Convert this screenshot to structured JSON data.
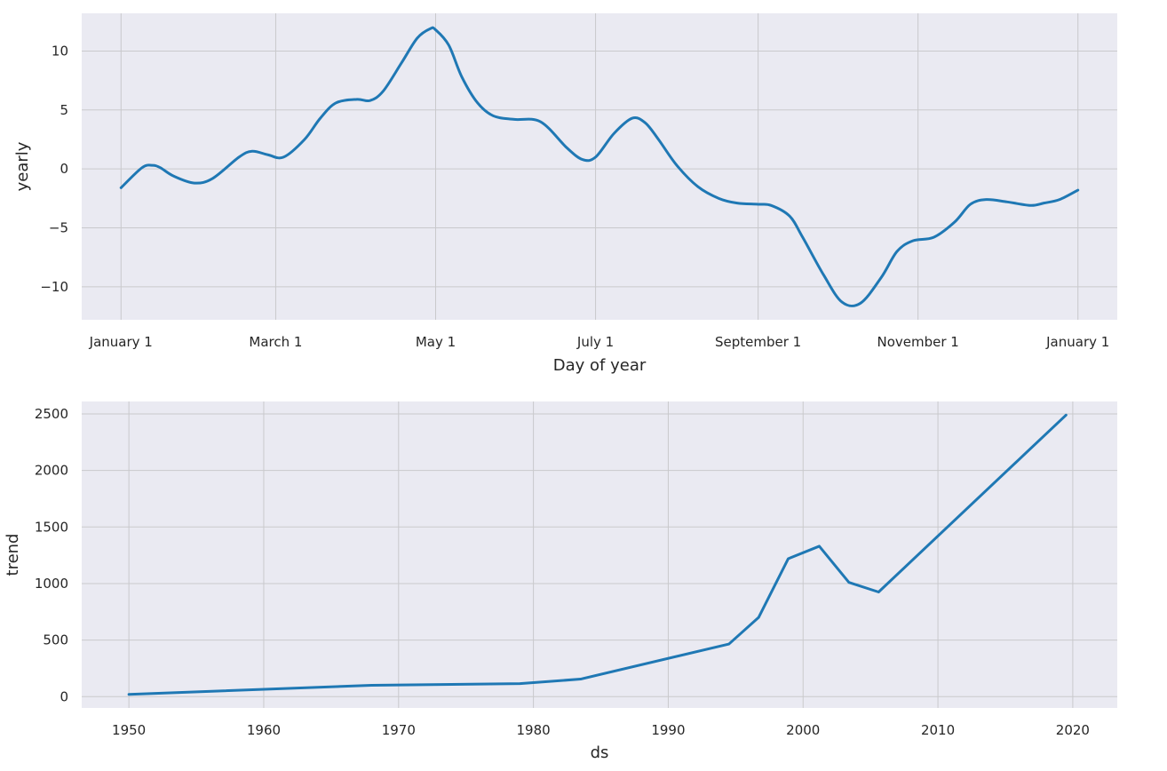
{
  "chart_data": [
    {
      "type": "line",
      "xlabel": "Day of year",
      "ylabel": "yearly",
      "x_ticks": [
        "January 1",
        "March 1",
        "May 1",
        "July 1",
        "September 1",
        "November 1",
        "January 1"
      ],
      "x_tick_days": [
        0,
        59,
        120,
        181,
        243,
        304,
        365
      ],
      "xlim": [
        -15,
        380
      ],
      "ylim": [
        -12.8,
        13.2
      ],
      "y_ticks": [
        -10,
        -5,
        0,
        5,
        10
      ],
      "y_tick_labels": [
        "−10",
        "−5",
        "0",
        "5",
        "10"
      ],
      "grid": true,
      "series": [
        {
          "color": "#1f78b4",
          "x": [
            0,
            8,
            12,
            15,
            20,
            28,
            35,
            45,
            50,
            56,
            62,
            70,
            76,
            82,
            90,
            95,
            100,
            107,
            113,
            118,
            120,
            125,
            130,
            136,
            142,
            150,
            160,
            170,
            176,
            181,
            188,
            195,
            200,
            205,
            212,
            220,
            228,
            235,
            243,
            248,
            255,
            260,
            268,
            275,
            282,
            290,
            296,
            302,
            310,
            318,
            324,
            330,
            338,
            347,
            352,
            358,
            365
          ],
          "y": [
            -1.6,
            0.1,
            0.3,
            0.1,
            -0.6,
            -1.2,
            -0.8,
            1.0,
            1.5,
            1.2,
            1.0,
            2.5,
            4.3,
            5.6,
            5.9,
            5.8,
            6.6,
            9.0,
            11.1,
            11.9,
            11.8,
            10.5,
            7.8,
            5.6,
            4.5,
            4.2,
            4.0,
            1.8,
            0.8,
            1.0,
            3.0,
            4.3,
            3.9,
            2.5,
            0.3,
            -1.5,
            -2.5,
            -2.9,
            -3.0,
            -3.1,
            -4.0,
            -5.8,
            -9.0,
            -11.3,
            -11.4,
            -9.2,
            -7.0,
            -6.1,
            -5.8,
            -4.5,
            -3.0,
            -2.6,
            -2.8,
            -3.1,
            -2.9,
            -2.6,
            -1.8
          ]
        }
      ]
    },
    {
      "type": "line",
      "xlabel": "ds",
      "ylabel": "trend",
      "x_ticks": [
        "1950",
        "1960",
        "1970",
        "1980",
        "1990",
        "2000",
        "2010",
        "2020"
      ],
      "x_tick_values": [
        1950,
        1960,
        1970,
        1980,
        1990,
        2000,
        2010,
        2020
      ],
      "xlim": [
        1946.5,
        2023.3
      ],
      "ylim": [
        -100,
        2610
      ],
      "y_ticks": [
        0,
        500,
        1000,
        1500,
        2000,
        2500
      ],
      "y_tick_labels": [
        "0",
        "500",
        "1000",
        "1500",
        "2000",
        "2500"
      ],
      "grid": true,
      "series": [
        {
          "color": "#1f78b4",
          "x": [
            1950,
            1968,
            1979,
            1983.5,
            1994.5,
            1996.7,
            1998.9,
            2001.2,
            2003.4,
            2005.6,
            2019.5
          ],
          "y": [
            20,
            100,
            115,
            155,
            465,
            700,
            1220,
            1330,
            1010,
            925,
            2490
          ]
        }
      ]
    }
  ]
}
